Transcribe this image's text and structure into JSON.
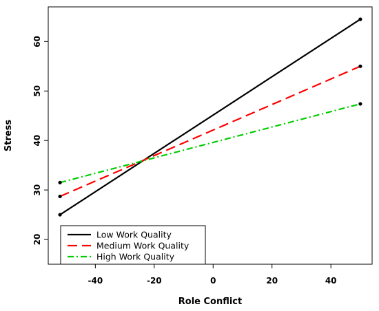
{
  "chart_data": {
    "type": "line",
    "xlabel": "Role Conflict",
    "ylabel": "Stress",
    "xlim": [
      -56,
      54
    ],
    "ylim": [
      15,
      67
    ],
    "x_ticks": [
      -40,
      -20,
      0,
      20,
      40
    ],
    "y_ticks": [
      20,
      30,
      40,
      50,
      60
    ],
    "grid": false,
    "legend_position": "bottom-left",
    "series": [
      {
        "name": "Low Work Quality",
        "color": "#000000",
        "dash": "solid",
        "x": [
          -52,
          50
        ],
        "y": [
          25.0,
          64.5
        ]
      },
      {
        "name": "Medium Work Quality",
        "color": "#ff0000",
        "dash": "dashed",
        "x": [
          -52,
          50
        ],
        "y": [
          28.7,
          55.0
        ]
      },
      {
        "name": "High Work Quality",
        "color": "#00cc00",
        "dash": "dotdash",
        "x": [
          -52,
          50
        ],
        "y": [
          31.5,
          47.4
        ]
      }
    ]
  }
}
